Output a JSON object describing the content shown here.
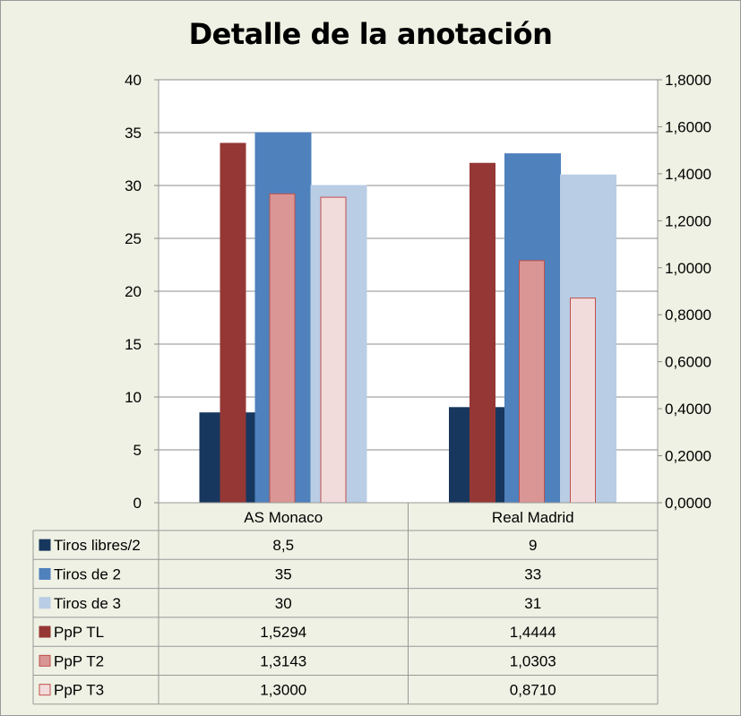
{
  "chart_data": {
    "type": "bar",
    "title": "Detalle de la anotación",
    "categories": [
      "AS Monaco",
      "Real Madrid"
    ],
    "series": [
      {
        "name": "Tiros libres/2",
        "axis": "left",
        "values": [
          8.5,
          9
        ],
        "labels": [
          "8,5",
          "9"
        ],
        "color": "#17375e",
        "stroke": "#17375e"
      },
      {
        "name": "Tiros de 2",
        "axis": "left",
        "values": [
          35,
          33
        ],
        "labels": [
          "35",
          "33"
        ],
        "color": "#4f81bd",
        "stroke": "#4f81bd"
      },
      {
        "name": "Tiros de 3",
        "axis": "left",
        "values": [
          30,
          31
        ],
        "labels": [
          "30",
          "31"
        ],
        "color": "#b9cde5",
        "stroke": "#b9cde5"
      },
      {
        "name": "PpP TL",
        "axis": "right",
        "values": [
          1.5294,
          1.4444
        ],
        "labels": [
          "1,5294",
          "1,4444"
        ],
        "color": "#953735",
        "stroke": "#953735"
      },
      {
        "name": "PpP T2",
        "axis": "right",
        "values": [
          1.3143,
          1.0303
        ],
        "labels": [
          "1,3143",
          "1,0303"
        ],
        "color": "#d99694",
        "stroke": "#c0504d"
      },
      {
        "name": "PpP T3",
        "axis": "right",
        "values": [
          1.3,
          0.871
        ],
        "labels": [
          "1,3000",
          "0,8710"
        ],
        "color": "#f2dcdb",
        "stroke": "#c0504d"
      }
    ],
    "y_left": {
      "min": 0,
      "max": 40,
      "step": 5,
      "ticks": [
        "0",
        "5",
        "10",
        "15",
        "20",
        "25",
        "30",
        "35",
        "40"
      ]
    },
    "y_right": {
      "min": 0,
      "max": 1.8,
      "step": 0.2,
      "ticks": [
        "0,0000",
        "0,2000",
        "0,4000",
        "0,6000",
        "0,8000",
        "1,0000",
        "1,2000",
        "1,4000",
        "1,6000",
        "1,8000"
      ]
    },
    "grid": true,
    "legend": "data-table"
  }
}
